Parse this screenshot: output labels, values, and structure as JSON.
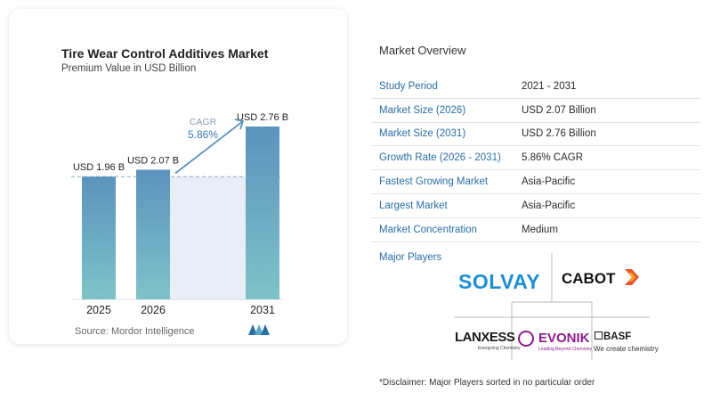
{
  "chart": {
    "title": "Tire Wear Control Additives Market",
    "subtitle": "Premium Value in USD Billion",
    "source": "Source: Mordor Intelligence",
    "cagr_label": "CAGR",
    "cagr_value": "5.86%"
  },
  "chart_data": {
    "type": "bar",
    "categories": [
      "2025",
      "2026",
      "2031"
    ],
    "values": [
      1.96,
      2.07,
      2.76
    ],
    "data_labels": [
      "USD 1.96 B",
      "USD 2.07 B",
      "USD 2.76 B"
    ],
    "title": "Tire Wear Control Additives Market",
    "subtitle": "Premium Value in USD Billion",
    "xlabel": "",
    "ylabel": "",
    "grid": false
  },
  "overview": {
    "title": "Market Overview",
    "rows": [
      {
        "key": "Study Period",
        "value": "2021 - 2031"
      },
      {
        "key": "Market Size (2026)",
        "value": "USD 2.07 Billion"
      },
      {
        "key": "Market Size (2031)",
        "value": "USD 2.76 Billion"
      },
      {
        "key": "Growth Rate (2026 - 2031)",
        "value": "5.86% CAGR"
      },
      {
        "key": "Fastest Growing Market",
        "value": "Asia-Pacific"
      },
      {
        "key": "Largest Market",
        "value": "Asia-Pacific"
      },
      {
        "key": "Market Concentration",
        "value": "Medium"
      }
    ]
  },
  "players": {
    "title": "Major Players",
    "solvay": "SOLVAY",
    "cabot": "CABOT",
    "lanxess": "LANXESS",
    "lanxess_tag": "Energizing Chemistry",
    "evonik": "EVONIK",
    "evonik_tag": "Leading Beyond Chemistry",
    "basf": "BASF",
    "basf_tag": "We create chemistry"
  },
  "disclaimer": "*Disclaimer: Major Players sorted in no particular order",
  "colors": {
    "bar_top": "#5b93bd",
    "bar_bottom": "#7fc3c9",
    "accent": "#2a6ea6"
  }
}
